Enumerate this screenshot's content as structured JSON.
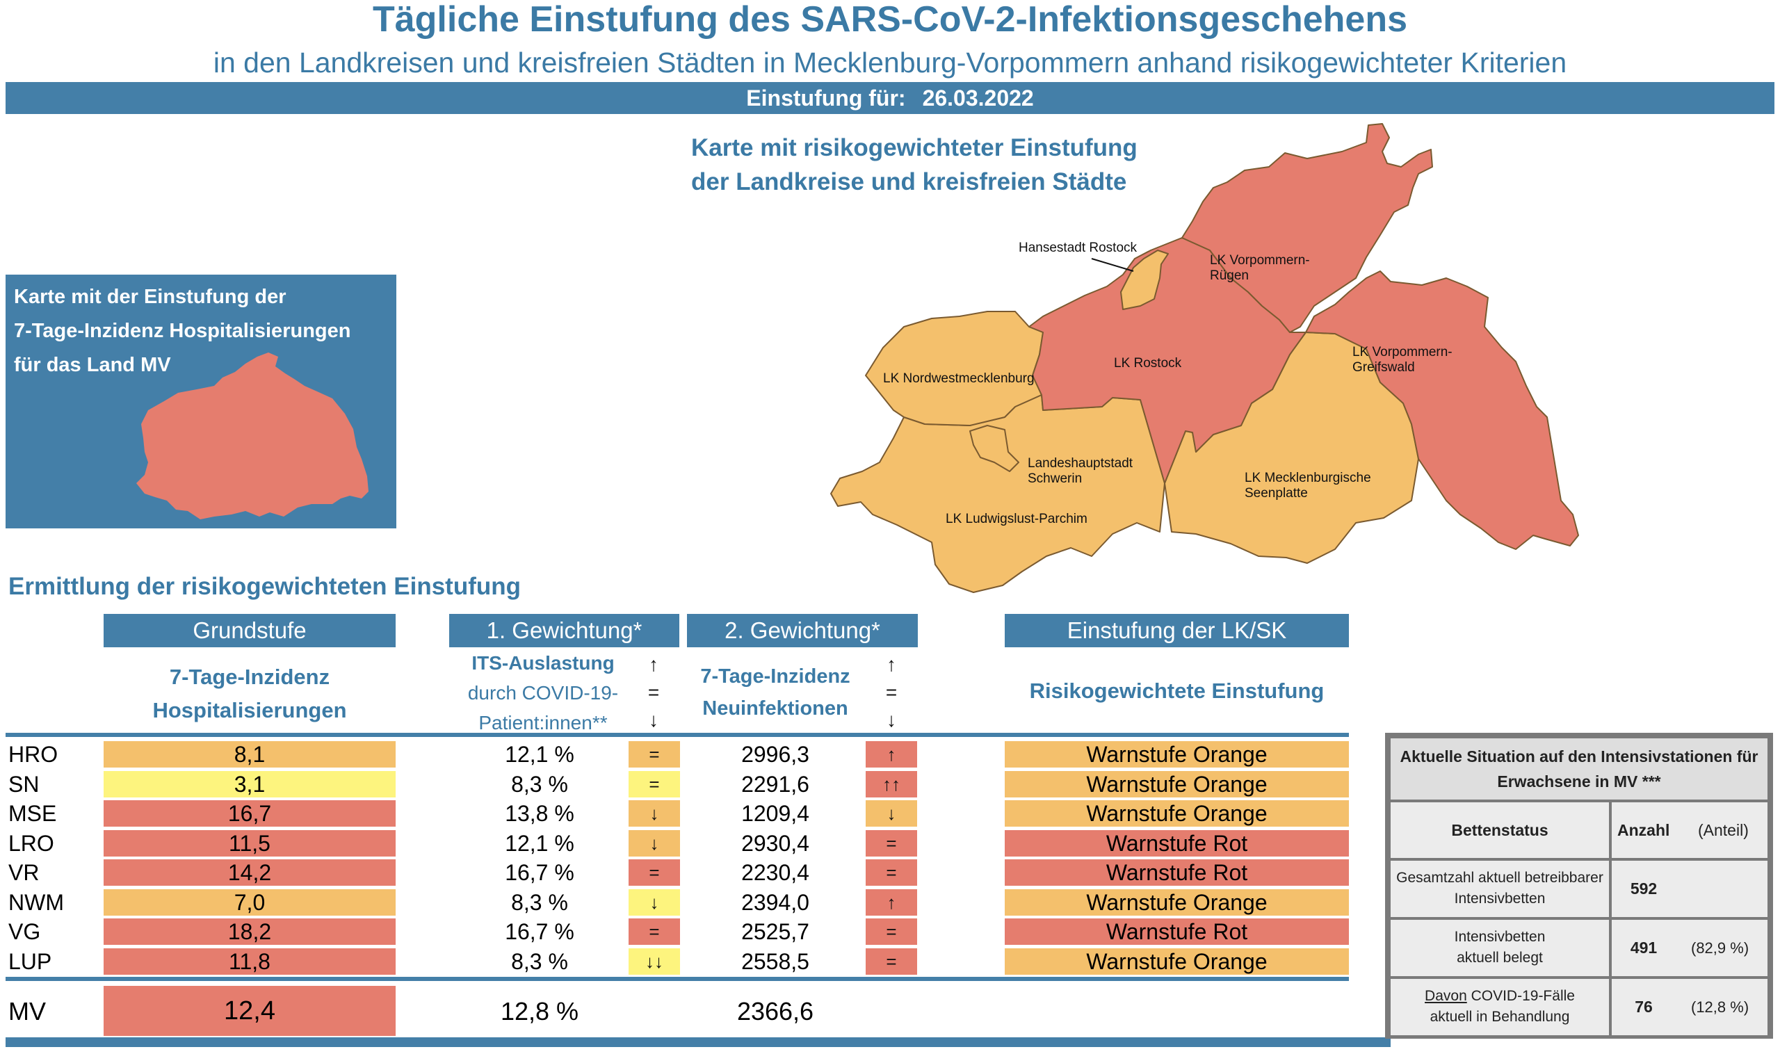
{
  "header": {
    "title": "Tägliche Einstufung des SARS-CoV-2-Infektionsgeschehens",
    "subtitle": "in den Landkreisen und kreisfreien Städten in Mecklenburg-Vorpommern anhand risikogewichteter Kriterien",
    "date_label": "Einstufung für:",
    "date_value": "26.03.2022"
  },
  "mv_box": {
    "line1": "Karte mit der Einstufung der",
    "line2": "7-Tage-Inzidenz Hospitalisierungen",
    "line3": "für das Land MV",
    "fill_color": "#e57d6e"
  },
  "main_map": {
    "title_line1": "Karte mit risikogewichteter Einstufung",
    "title_line2": "der Landkreise und kreisfreien Städte",
    "colors": {
      "orange": "#f4c06c",
      "red": "#e57d6e"
    },
    "regions": [
      {
        "label": "Hansestadt Rostock",
        "status": "orange"
      },
      {
        "label_line1": "LK Vorpommern-",
        "label_line2": "Rügen",
        "status": "red"
      },
      {
        "label": "LK Rostock",
        "status": "red"
      },
      {
        "label": "LK Nordwestmecklenburg",
        "status": "orange"
      },
      {
        "label_line1": "LK Vorpommern-",
        "label_line2": "Greifswald",
        "status": "red"
      },
      {
        "label_line1": "Landeshauptstadt",
        "label_line2": "Schwerin",
        "status": "orange"
      },
      {
        "label_line1": "LK Mecklenburgische",
        "label_line2": "Seenplatte",
        "status": "orange"
      },
      {
        "label": "LK Ludwigslust-Parchim",
        "status": "orange"
      }
    ]
  },
  "table": {
    "section_title": "Ermittlung der risikogewichteten Einstufung",
    "headers": {
      "grundstufe": "Grundstufe",
      "gew1": "1. Gewichtung*",
      "gew2": "2. Gewichtung*",
      "einstufung": "Einstufung der LK/SK"
    },
    "subheaders": {
      "grund_l1": "7-Tage-Inzidenz",
      "grund_l2": "Hospitalisierungen",
      "its_l1": "ITS-Auslastung",
      "its_l2": "durch COVID-19-",
      "its_l3": "Patient:innen**",
      "inz_l1": "7-Tage-Inzidenz",
      "inz_l2": "Neuinfektionen",
      "risk": "Risikogewichtete Einstufung",
      "arrow_up": "↑",
      "arrow_eq": "=",
      "arrow_down": "↓"
    },
    "colors": {
      "orange": "#f4c06c",
      "yellow": "#fdf47e",
      "red": "#e57d6e"
    },
    "rows": [
      {
        "code": "HRO",
        "hosp": "8,1",
        "hosp_color": "orange",
        "its": "12,1 %",
        "its_trend": "=",
        "its_trend_color": "orange",
        "inz": "2996,3",
        "inz_trend": "↑",
        "inz_trend_color": "red",
        "status": "Warnstufe Orange",
        "status_color": "orange"
      },
      {
        "code": "SN",
        "hosp": "3,1",
        "hosp_color": "yellow",
        "its": "8,3 %",
        "its_trend": "=",
        "its_trend_color": "yellow",
        "inz": "2291,6",
        "inz_trend": "↑↑",
        "inz_trend_color": "red",
        "status": "Warnstufe Orange",
        "status_color": "orange"
      },
      {
        "code": "MSE",
        "hosp": "16,7",
        "hosp_color": "red",
        "its": "13,8 %",
        "its_trend": "↓",
        "its_trend_color": "orange",
        "inz": "1209,4",
        "inz_trend": "↓",
        "inz_trend_color": "orange",
        "status": "Warnstufe Orange",
        "status_color": "orange"
      },
      {
        "code": "LRO",
        "hosp": "11,5",
        "hosp_color": "red",
        "its": "12,1 %",
        "its_trend": "↓",
        "its_trend_color": "orange",
        "inz": "2930,4",
        "inz_trend": "=",
        "inz_trend_color": "red",
        "status": "Warnstufe Rot",
        "status_color": "red"
      },
      {
        "code": "VR",
        "hosp": "14,2",
        "hosp_color": "red",
        "its": "16,7 %",
        "its_trend": "=",
        "its_trend_color": "red",
        "inz": "2230,4",
        "inz_trend": "=",
        "inz_trend_color": "red",
        "status": "Warnstufe Rot",
        "status_color": "red"
      },
      {
        "code": "NWM",
        "hosp": "7,0",
        "hosp_color": "orange",
        "its": "8,3 %",
        "its_trend": "↓",
        "its_trend_color": "yellow",
        "inz": "2394,0",
        "inz_trend": "↑",
        "inz_trend_color": "red",
        "status": "Warnstufe Orange",
        "status_color": "orange"
      },
      {
        "code": "VG",
        "hosp": "18,2",
        "hosp_color": "red",
        "its": "16,7 %",
        "its_trend": "=",
        "its_trend_color": "red",
        "inz": "2525,7",
        "inz_trend": "=",
        "inz_trend_color": "red",
        "status": "Warnstufe Rot",
        "status_color": "red"
      },
      {
        "code": "LUP",
        "hosp": "11,8",
        "hosp_color": "red",
        "its": "8,3 %",
        "its_trend": "↓↓",
        "its_trend_color": "yellow",
        "inz": "2558,5",
        "inz_trend": "=",
        "inz_trend_color": "red",
        "status": "Warnstufe Orange",
        "status_color": "orange"
      }
    ],
    "total": {
      "code": "MV",
      "hosp": "12,4",
      "hosp_color": "red",
      "its": "12,8 %",
      "inz": "2366,6"
    }
  },
  "icu": {
    "title_l1": "Aktuelle Situation auf den Intensivstationen für",
    "title_l2": "Erwachsene in MV ***",
    "col_status": "Bettenstatus",
    "col_count": "Anzahl",
    "col_share": "(Anteil)",
    "rows": [
      {
        "label_l1": "Gesamtzahl aktuell betreibbarer",
        "label_l2": "Intensivbetten",
        "count": "592",
        "share": ""
      },
      {
        "label_l1": "Intensivbetten",
        "label_l2": "aktuell belegt",
        "count": "491",
        "share": "(82,9 %)"
      },
      {
        "label_l1": "Davon COVID-19-Fälle",
        "label_l2": "aktuell in Behandlung",
        "count": "76",
        "share": "(12,8 %)"
      }
    ]
  }
}
